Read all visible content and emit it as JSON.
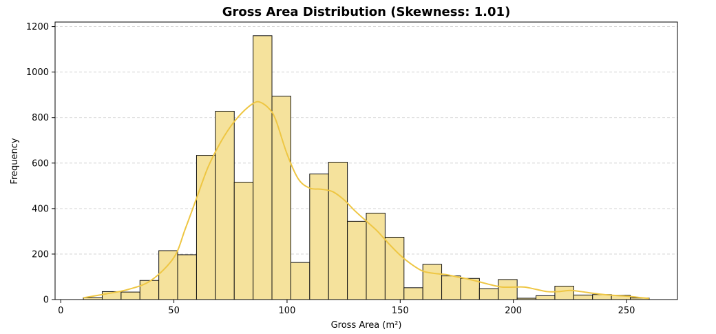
{
  "chart_data": {
    "type": "bar",
    "title": "Gross Area Distribution (Skewness: 1.01)",
    "xlabel": "Gross Area (m²)",
    "ylabel": "Frequency",
    "xlim": [
      -2.5,
      272.5
    ],
    "ylim": [
      0,
      1220
    ],
    "xticks": [
      0,
      50,
      100,
      150,
      200,
      250
    ],
    "yticks": [
      0,
      200,
      400,
      600,
      800,
      1000,
      1200
    ],
    "grid": "y-dashed",
    "bin_edges": [
      10.0,
      18.33,
      26.67,
      35.0,
      43.33,
      51.67,
      60.0,
      68.33,
      76.67,
      85.0,
      93.33,
      101.67,
      110.0,
      118.33,
      126.67,
      135.0,
      143.33,
      151.67,
      160.0,
      168.33,
      176.67,
      185.0,
      193.33,
      201.67,
      210.0,
      218.33,
      226.67,
      235.0,
      243.33,
      251.67,
      260.0
    ],
    "counts": [
      8,
      35,
      33,
      84,
      215,
      197,
      634,
      828,
      516,
      1160,
      894,
      163,
      552,
      604,
      344,
      380,
      274,
      52,
      155,
      104,
      93,
      48,
      88,
      6,
      17,
      59,
      20,
      22,
      19,
      7
    ],
    "kde": {
      "x": [
        10,
        20,
        30,
        40,
        50,
        55,
        60,
        65,
        70,
        75,
        80,
        85,
        88,
        92,
        95,
        100,
        105,
        110,
        115,
        120,
        125,
        130,
        135,
        140,
        145,
        150,
        155,
        160,
        165,
        170,
        175,
        180,
        185,
        190,
        195,
        200,
        205,
        210,
        215,
        220,
        225,
        230,
        235,
        240,
        245,
        250,
        255,
        260
      ],
      "y": [
        8,
        25,
        45,
        85,
        185,
        310,
        445,
        580,
        680,
        760,
        820,
        862,
        868,
        840,
        790,
        640,
        530,
        490,
        485,
        475,
        440,
        390,
        345,
        300,
        245,
        195,
        155,
        125,
        115,
        110,
        100,
        90,
        78,
        65,
        55,
        55,
        55,
        45,
        35,
        35,
        40,
        35,
        28,
        22,
        18,
        15,
        10,
        5
      ]
    },
    "bar_fill": "#f5e29c",
    "bar_edge": "#111111",
    "kde_color": "#eec643"
  }
}
